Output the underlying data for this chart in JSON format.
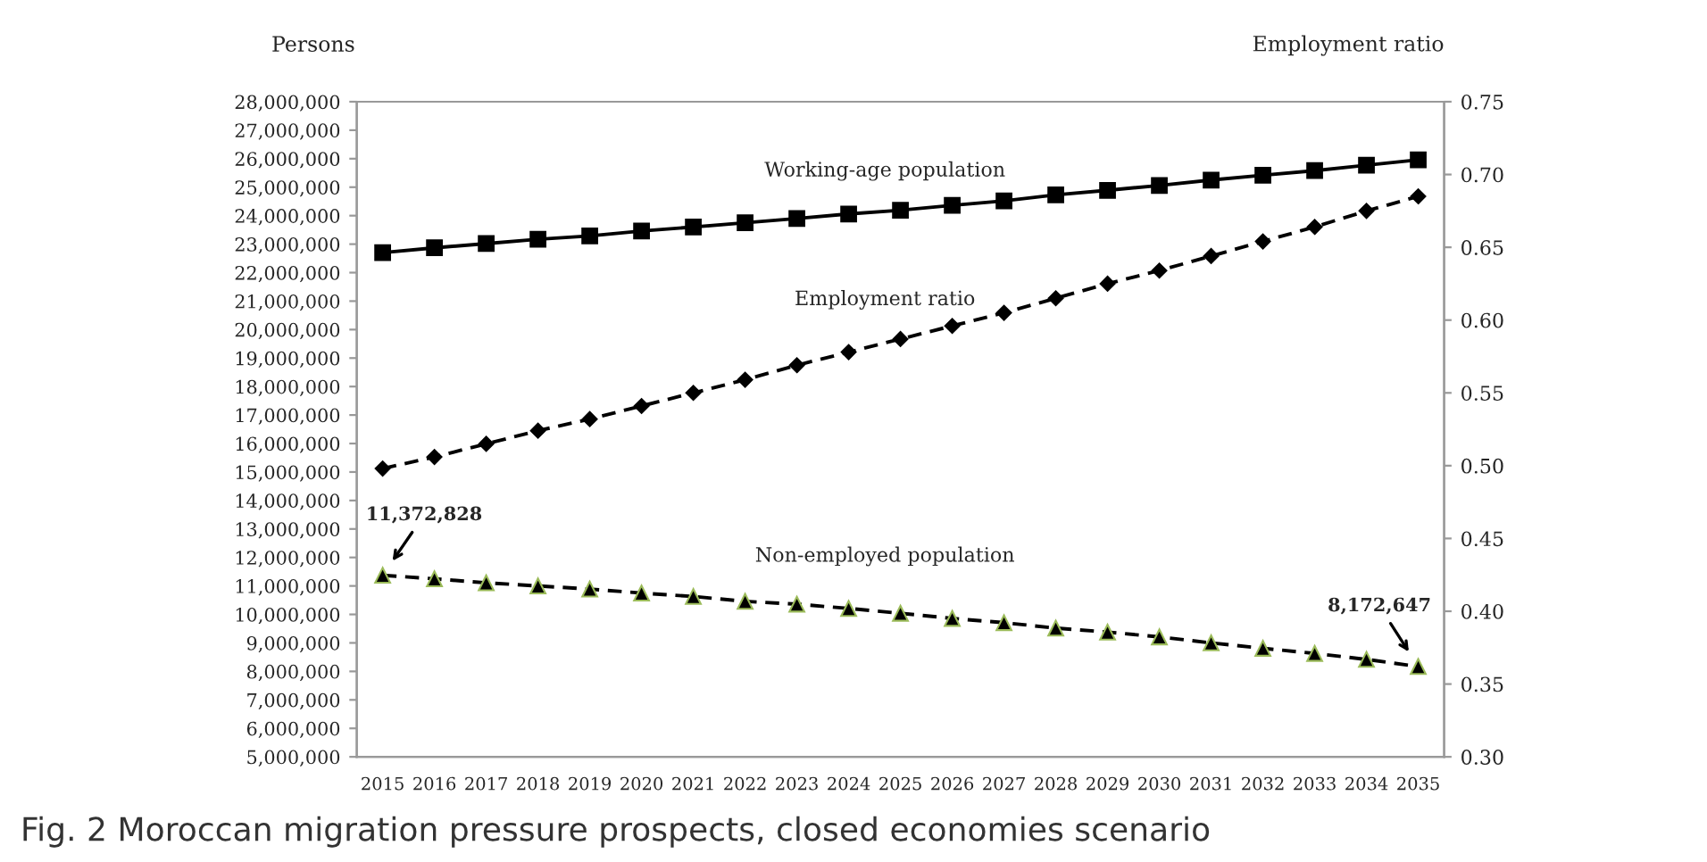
{
  "chart_data": {
    "type": "line",
    "categories": [
      "2015",
      "2016",
      "2017",
      "2018",
      "2019",
      "2020",
      "2021",
      "2022",
      "2023",
      "2024",
      "2025",
      "2026",
      "2027",
      "2028",
      "2029",
      "2030",
      "2031",
      "2032",
      "2033",
      "2034",
      "2035"
    ],
    "ylabel": "Persons",
    "y2label": "Employment ratio",
    "ylim": [
      5000000,
      28000000
    ],
    "yticks": [
      {
        "value": 5000000,
        "label": "5,000,000"
      },
      {
        "value": 6000000,
        "label": "6,000,000"
      },
      {
        "value": 7000000,
        "label": "7,000,000"
      },
      {
        "value": 8000000,
        "label": "8,000,000"
      },
      {
        "value": 9000000,
        "label": "9,000,000"
      },
      {
        "value": 10000000,
        "label": "10,000,000"
      },
      {
        "value": 11000000,
        "label": "11,000,000"
      },
      {
        "value": 12000000,
        "label": "12,000,000"
      },
      {
        "value": 13000000,
        "label": "13,000,000"
      },
      {
        "value": 14000000,
        "label": "14,000,000"
      },
      {
        "value": 15000000,
        "label": "15,000,000"
      },
      {
        "value": 16000000,
        "label": "16,000,000"
      },
      {
        "value": 17000000,
        "label": "17,000,000"
      },
      {
        "value": 18000000,
        "label": "18,000,000"
      },
      {
        "value": 19000000,
        "label": "19,000,000"
      },
      {
        "value": 20000000,
        "label": "20,000,000"
      },
      {
        "value": 21000000,
        "label": "21,000,000"
      },
      {
        "value": 22000000,
        "label": "22,000,000"
      },
      {
        "value": 23000000,
        "label": "23,000,000"
      },
      {
        "value": 24000000,
        "label": "24,000,000"
      },
      {
        "value": 25000000,
        "label": "25,000,000"
      },
      {
        "value": 26000000,
        "label": "26,000,000"
      },
      {
        "value": 27000000,
        "label": "27,000,000"
      },
      {
        "value": 28000000,
        "label": "28,000,000"
      }
    ],
    "y2lim": [
      0.3,
      0.75
    ],
    "y2ticks": [
      {
        "value": 0.3,
        "label": "0.30"
      },
      {
        "value": 0.35,
        "label": "0.35"
      },
      {
        "value": 0.4,
        "label": "0.40"
      },
      {
        "value": 0.45,
        "label": "0.45"
      },
      {
        "value": 0.5,
        "label": "0.50"
      },
      {
        "value": 0.55,
        "label": "0.55"
      },
      {
        "value": 0.6,
        "label": "0.60"
      },
      {
        "value": 0.65,
        "label": "0.65"
      },
      {
        "value": 0.7,
        "label": "0.70"
      },
      {
        "value": 0.75,
        "label": "0.75"
      }
    ],
    "grid": false,
    "legend": false,
    "series": [
      {
        "name": "Working-age population",
        "color": "#000000",
        "marker": "square",
        "line_style": "solid",
        "values": [
          22700000,
          22870000,
          23020000,
          23170000,
          23290000,
          23460000,
          23600000,
          23750000,
          23900000,
          24060000,
          24190000,
          24360000,
          24520000,
          24730000,
          24890000,
          25060000,
          25250000,
          25420000,
          25580000,
          25770000,
          25960000
        ]
      },
      {
        "name": "Employment ratio",
        "color": "#000000",
        "axis": "y2",
        "marker": "diamond",
        "line_style": "dashed",
        "values": [
          0.498,
          0.506,
          0.515,
          0.524,
          0.532,
          0.541,
          0.55,
          0.559,
          0.569,
          0.578,
          0.587,
          0.596,
          0.605,
          0.615,
          0.625,
          0.634,
          0.644,
          0.654,
          0.664,
          0.675,
          0.685
        ]
      },
      {
        "name": "Non-employed population",
        "color": "#000000",
        "marker": "triangle",
        "line_style": "dashed",
        "values": [
          11372828,
          11250000,
          11110000,
          11000000,
          10890000,
          10750000,
          10630000,
          10460000,
          10360000,
          10210000,
          10040000,
          9860000,
          9710000,
          9520000,
          9380000,
          9210000,
          9000000,
          8810000,
          8630000,
          8420000,
          8172647
        ]
      }
    ],
    "annotations": [
      {
        "text": "11,372,828",
        "x": "2015",
        "y": 11372828
      },
      {
        "text": "8,172,647",
        "x": "2035",
        "y": 8172647
      },
      "Fig. 2 Moroccan migration pressure prospects, closed economies scenario"
    ]
  }
}
